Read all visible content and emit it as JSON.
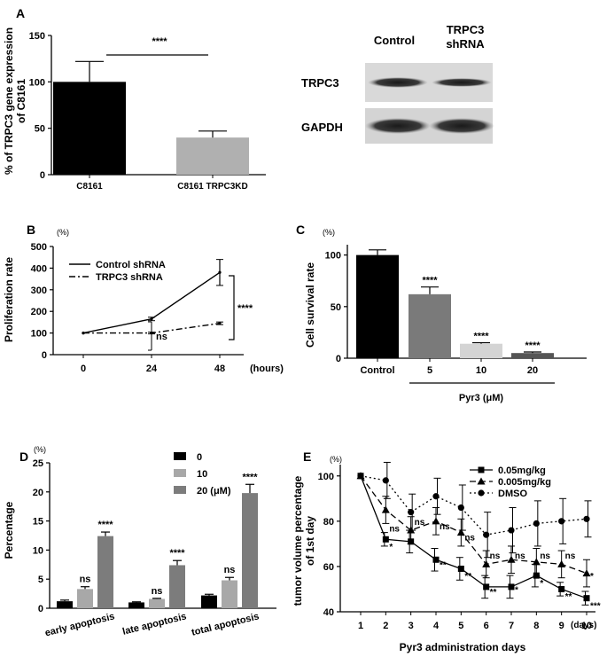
{
  "chart_data": [
    {
      "panel": "A",
      "type": "bar",
      "ylabel_lines": [
        "% of TRPC3 gene expression",
        "of C8161"
      ],
      "ylim": [
        0,
        150
      ],
      "yticks": [
        0,
        50,
        100,
        150
      ],
      "categories": [
        "C8161",
        "C8161 TRPC3KD"
      ],
      "values": [
        100,
        40
      ],
      "errors": [
        22,
        7
      ],
      "colors": [
        "#000000",
        "#b0b0b0"
      ],
      "sig": "****"
    },
    {
      "panel": "A",
      "type": "other",
      "blot": {
        "columns": [
          "Control",
          "TRPC3",
          "shRNA"
        ],
        "rows": [
          "TRPC3",
          "GAPDH"
        ]
      }
    },
    {
      "panel": "B",
      "type": "line",
      "ylabel": "Proliferation rate",
      "unit": "(%)",
      "xlabel": "(hours)",
      "x": [
        0,
        24,
        48
      ],
      "ylim": [
        0,
        500
      ],
      "yticks": [
        0,
        100,
        200,
        300,
        400,
        500
      ],
      "series": [
        {
          "name": "Control shRNA",
          "values": [
            100,
            165,
            380
          ],
          "errors": [
            0,
            8,
            60
          ]
        },
        {
          "name": "TRPC3   shRNA",
          "values": [
            100,
            100,
            145
          ],
          "errors": [
            0,
            4,
            6
          ]
        }
      ],
      "annotations": [
        "ns",
        "****"
      ]
    },
    {
      "panel": "C",
      "type": "bar",
      "ylabel": "Cell survival rate",
      "unit": "(%)",
      "ylim": [
        0,
        110
      ],
      "yticks": [
        0,
        50,
        100
      ],
      "categories": [
        "Control",
        "5",
        "10",
        "20"
      ],
      "values": [
        100,
        62,
        14,
        5
      ],
      "errors": [
        5,
        7,
        1,
        1
      ],
      "colors": [
        "#000000",
        "#7a7a7a",
        "#d4d4d4",
        "#555555"
      ],
      "sig": [
        "",
        "****",
        "****",
        "****"
      ],
      "group_label": "Pyr3 (μM)"
    },
    {
      "panel": "D",
      "type": "bar",
      "ylabel": "Percentage",
      "unit": "(%)",
      "ylim": [
        0,
        25
      ],
      "yticks": [
        0,
        5,
        10,
        15,
        20,
        25
      ],
      "categories": [
        "early apoptosis",
        "late apoptosis",
        "total apoptosis"
      ],
      "series": [
        {
          "name": "0",
          "values": [
            1.2,
            1.0,
            2.2
          ],
          "errors": [
            0.2,
            0.1,
            0.2
          ],
          "color": "#000000"
        },
        {
          "name": "10",
          "values": [
            3.3,
            1.6,
            4.8
          ],
          "errors": [
            0.4,
            0.1,
            0.5
          ],
          "color": "#a8a8a8"
        },
        {
          "name": "20 (μM)",
          "values": [
            12.4,
            7.4,
            19.8
          ],
          "errors": [
            0.7,
            0.8,
            1.5
          ],
          "color": "#7c7c7c"
        }
      ],
      "sig": [
        [
          "",
          "ns",
          "****"
        ],
        [
          "",
          "ns",
          "****"
        ],
        [
          "",
          "ns",
          "****"
        ]
      ]
    },
    {
      "panel": "E",
      "type": "line",
      "ylabel_lines": [
        "tumor volume percentage",
        "of 1st day"
      ],
      "unit": "(%)",
      "xlabel": "Pyr3 administration days",
      "xunit": "(days)",
      "x": [
        1,
        2,
        3,
        4,
        5,
        6,
        7,
        8,
        9,
        10
      ],
      "ylim": [
        40,
        105
      ],
      "yticks": [
        40,
        60,
        80,
        100
      ],
      "series": [
        {
          "name": "0.05mg/kg",
          "marker": "square",
          "dash": "",
          "values": [
            100,
            72,
            71,
            63,
            59,
            51,
            51,
            56,
            50,
            46
          ],
          "errors": [
            0,
            3,
            5,
            5,
            5,
            5,
            5,
            5,
            3,
            3
          ]
        },
        {
          "name": "0.005mg/kg",
          "marker": "triangle",
          "dash": "7 4",
          "values": [
            100,
            85,
            76,
            80,
            75,
            61,
            63,
            62,
            61,
            57
          ],
          "errors": [
            0,
            6,
            6,
            6,
            6,
            6,
            6,
            6,
            6,
            6
          ]
        },
        {
          "name": "DMSO",
          "marker": "circle",
          "dash": "2 3",
          "values": [
            100,
            98,
            84,
            91,
            86,
            74,
            76,
            79,
            80,
            81
          ],
          "errors": [
            0,
            8,
            8,
            8,
            10,
            10,
            10,
            10,
            10,
            8
          ]
        }
      ],
      "annotations": {
        "ns": "ns",
        "one": "*",
        "two": "**",
        "three": "***"
      }
    }
  ],
  "panel_letters": {
    "A": "A",
    "B": "B",
    "C": "C",
    "D": "D",
    "E": "E"
  }
}
